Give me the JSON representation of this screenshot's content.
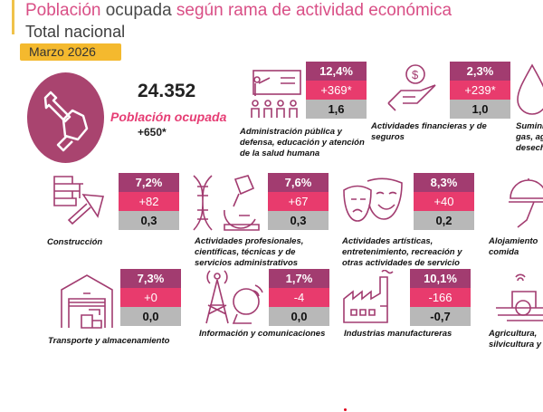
{
  "header": {
    "title_part1": "Población",
    "title_part2": "ocupada",
    "title_part3": "según rama de actividad económica",
    "subtitle": "Total nacional",
    "period": "Marzo 2026"
  },
  "colors": {
    "share": "#a23c70",
    "change": "#e83b6d",
    "contribution": "#b8b8b8",
    "accent": "#f4b92e",
    "title": "#d94f86"
  },
  "total": {
    "value": "24.352",
    "label": "Población ocupada",
    "change": "+650*",
    "icon": "wrench-hand-icon"
  },
  "sectors": [
    {
      "label": "Administración pública y defensa, educación y atención de la salud humana",
      "share": "12,4%",
      "change": "+369*",
      "contribution": "1,6",
      "icon": "teacher-icon"
    },
    {
      "label": "Actividades financieras y de seguros",
      "share": "2,3%",
      "change": "+239*",
      "contribution": "1,0",
      "icon": "money-hand-icon"
    },
    {
      "label": "Sumini gas, ag desech",
      "icon": "water-drop-icon"
    },
    {
      "label": "Construcción",
      "share": "7,2%",
      "change": "+82",
      "contribution": "0,3",
      "icon": "bricks-trowel-icon"
    },
    {
      "label": "Actividades profesionales, científicas, técnicas y de servicios administrativos",
      "share": "7,6%",
      "change": "+67",
      "contribution": "0,3",
      "icon": "dna-microscope-icon"
    },
    {
      "label": "Actividades artísticas, entretenimiento, recreación y otras actividades de servicio",
      "share": "8,3%",
      "change": "+40",
      "contribution": "0,2",
      "icon": "theater-masks-icon"
    },
    {
      "label": "Alojamiento comida",
      "icon": "food-cloche-icon"
    },
    {
      "label": "Transporte y almacenamiento",
      "share": "7,3%",
      "change": "+0",
      "contribution": "0,0",
      "icon": "warehouse-icon"
    },
    {
      "label": "Información y comunicaciones",
      "share": "1,7%",
      "change": "-4",
      "contribution": "0,0",
      "icon": "antenna-icon"
    },
    {
      "label": "Industrias manufactureras",
      "share": "10,1%",
      "change": "-166",
      "contribution": "-0,7",
      "icon": "factory-icon"
    },
    {
      "label": "Agricultura, silvicultura y",
      "icon": "tractor-icon"
    }
  ]
}
